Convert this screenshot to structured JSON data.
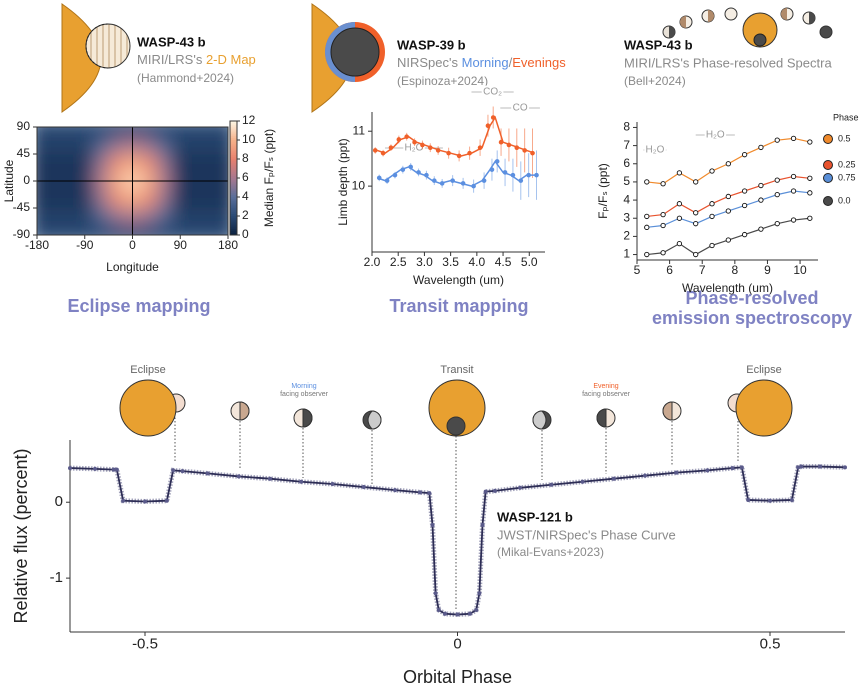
{
  "chart_data": [
    {
      "type": "heatmap",
      "title": "WASP-43 b",
      "subtitle": [
        "MIRI/LRS's ",
        "2-D Map"
      ],
      "source": "(Hammond+2024)",
      "section": "Eclipse mapping",
      "xlabel": "Longitude",
      "ylabel": "Latitude",
      "colorbar_label": "Median Fₚ/Fₛ (ppt)",
      "x": [
        -180,
        -150,
        -120,
        -90,
        -60,
        -30,
        0,
        30,
        60,
        90,
        120,
        150,
        180
      ],
      "y": [
        90,
        60,
        30,
        0,
        -30,
        -60,
        -90
      ],
      "z": [
        [
          2,
          2,
          2,
          2,
          2,
          2,
          2,
          2,
          2,
          2,
          2,
          2,
          2
        ],
        [
          1.5,
          1.5,
          1.5,
          1.5,
          3.5,
          5.3,
          6,
          5.3,
          3.5,
          1.5,
          1.5,
          1.5,
          1.5
        ],
        [
          1,
          1,
          1,
          1,
          5.3,
          8.5,
          9.7,
          8.5,
          5.3,
          1,
          1,
          1,
          1
        ],
        [
          1,
          1,
          1,
          1,
          6,
          9.7,
          11,
          9.7,
          6,
          1,
          1,
          1,
          1
        ],
        [
          1,
          1,
          1,
          1,
          5.3,
          8.5,
          9.7,
          8.5,
          5.3,
          1,
          1,
          1,
          1
        ],
        [
          1.5,
          1.5,
          1.5,
          1.5,
          3.5,
          5.3,
          6,
          5.3,
          3.5,
          1.5,
          1.5,
          1.5,
          1.5
        ],
        [
          2,
          2,
          2,
          2,
          2,
          2,
          2,
          2,
          2,
          2,
          2,
          2,
          2
        ]
      ],
      "xlim": [
        -180,
        180
      ],
      "xticks": [
        -180,
        -90,
        0,
        90,
        180
      ],
      "ylim": [
        -90,
        90
      ],
      "yticks": [
        -90,
        -45,
        0,
        45,
        90
      ],
      "clim": [
        0,
        12
      ],
      "cticks": [
        0,
        2,
        4,
        6,
        8,
        10,
        12
      ]
    },
    {
      "type": "errorbar",
      "title": "WASP-39 b",
      "subtitle": [
        "NIRSpec's ",
        "Morning",
        "/",
        "Evenings"
      ],
      "subtitle_colors": [
        "#8a8a8a",
        "#5b8fe0",
        "#8a8a8a",
        "#f0602a"
      ],
      "source": "(Espinoza+2024)",
      "section": "Transit mapping",
      "xlabel": "Wavelength (um)",
      "ylabel": "Limb depth (ppt)",
      "annotations": [
        "H₂O",
        "CO₂",
        "CO"
      ],
      "x": [
        2.1,
        2.25,
        2.4,
        2.55,
        2.7,
        2.85,
        3.0,
        3.15,
        3.3,
        3.5,
        3.7,
        3.9,
        4.1,
        4.25,
        4.35,
        4.5,
        4.65,
        4.8,
        4.95,
        5.1
      ],
      "series": [
        {
          "color": "#f0602a",
          "values": [
            10.65,
            10.6,
            10.7,
            10.85,
            10.9,
            10.8,
            10.75,
            10.7,
            10.65,
            10.6,
            10.55,
            10.6,
            10.7,
            11.1,
            11.25,
            10.8,
            10.75,
            10.7,
            10.65,
            10.6
          ]
        },
        {
          "color": "#5b8fe0",
          "values": [
            10.15,
            10.1,
            10.2,
            10.3,
            10.35,
            10.25,
            10.2,
            10.1,
            10.05,
            10.1,
            10.05,
            10.0,
            10.1,
            10.3,
            10.45,
            10.25,
            10.2,
            10.1,
            10.2,
            10.2
          ]
        }
      ],
      "errors": [
        0.06,
        0.06,
        0.06,
        0.07,
        0.07,
        0.07,
        0.08,
        0.08,
        0.08,
        0.1,
        0.1,
        0.12,
        0.15,
        0.2,
        0.2,
        0.25,
        0.3,
        0.35,
        0.4,
        0.45
      ],
      "xlim": [
        2.0,
        5.3
      ],
      "xticks": [
        {
          "value": 2,
          "label": "2.0"
        },
        2.5,
        {
          "value": 3,
          "label": "3.0"
        },
        3.5,
        {
          "value": 4,
          "label": "4.0"
        },
        4.5,
        {
          "value": 5,
          "label": "5.0"
        }
      ],
      "ylim": [
        8.8,
        11.35
      ],
      "yticks": [
        10,
        11
      ]
    },
    {
      "type": "line",
      "title": "WASP-43 b",
      "subtitle": [
        "MIRI/LRS's Phase-resolved Spectra"
      ],
      "source": "(Bell+2024)",
      "section": [
        "Phase-resolved",
        "emission spectroscopy"
      ],
      "xlabel": "Wavelength (um)",
      "ylabel": "Fₚ/Fₛ (ppt)",
      "legend_title": "Phase",
      "annotations": [
        "H₂O",
        "H₂O"
      ],
      "x": [
        5.3,
        5.8,
        6.3,
        6.8,
        7.3,
        7.8,
        8.3,
        8.8,
        9.3,
        9.8,
        10.3
      ],
      "series": [
        {
          "name": "0.5",
          "color": "#f08a2c",
          "values": [
            5.0,
            4.9,
            5.5,
            5.0,
            5.6,
            6.0,
            6.5,
            6.9,
            7.3,
            7.4,
            7.2
          ]
        },
        {
          "name": "0.25",
          "color": "#e8532e",
          "values": [
            3.1,
            3.2,
            3.8,
            3.3,
            3.8,
            4.2,
            4.5,
            4.8,
            5.1,
            5.3,
            5.2
          ]
        },
        {
          "name": "0.75",
          "color": "#5a8fd8",
          "values": [
            2.5,
            2.6,
            3.0,
            2.7,
            3.1,
            3.4,
            3.7,
            4.0,
            4.3,
            4.5,
            4.4
          ]
        },
        {
          "name": "0.0",
          "color": "#4a4a4a",
          "values": [
            1.0,
            1.1,
            1.6,
            1.0,
            1.5,
            1.8,
            2.1,
            2.4,
            2.7,
            2.9,
            3.0
          ]
        }
      ],
      "xlim": [
        5,
        10.55
      ],
      "xticks": [
        5,
        6,
        7,
        8,
        9,
        10
      ],
      "ylim": [
        0.7,
        8.3
      ],
      "yticks": [
        1,
        2,
        3,
        4,
        5,
        6,
        7,
        8
      ]
    },
    {
      "type": "line",
      "title": "WASP-121 b",
      "subtitle": "JWST/NIRSpec's Phase Curve",
      "source": "(Mikal-Evans+2023)",
      "xlabel": "Orbital Phase",
      "ylabel": "Relative flux (percent)",
      "annotations": [
        "Eclipse",
        "Transit",
        "Eclipse",
        "Morning",
        "facing observer",
        "Evening",
        "facing observer"
      ],
      "x": [
        -0.62,
        -0.58,
        -0.55,
        -0.545,
        -0.535,
        -0.5,
        -0.465,
        -0.455,
        -0.44,
        -0.4,
        -0.35,
        -0.3,
        -0.25,
        -0.2,
        -0.15,
        -0.1,
        -0.06,
        -0.045,
        -0.04,
        -0.035,
        -0.03,
        -0.02,
        0,
        0.02,
        0.03,
        0.035,
        0.04,
        0.045,
        0.06,
        0.1,
        0.15,
        0.2,
        0.25,
        0.3,
        0.35,
        0.4,
        0.44,
        0.455,
        0.465,
        0.5,
        0.535,
        0.545,
        0.55,
        0.58,
        0.62
      ],
      "series": [
        {
          "color": "#2d2d55",
          "values": [
            0.45,
            0.44,
            0.43,
            0.43,
            0.02,
            0.01,
            0.02,
            0.42,
            0.41,
            0.38,
            0.34,
            0.31,
            0.27,
            0.24,
            0.2,
            0.16,
            0.13,
            0.12,
            -0.3,
            -1.2,
            -1.42,
            -1.47,
            -1.48,
            -1.47,
            -1.42,
            -1.2,
            -0.3,
            0.14,
            0.15,
            0.19,
            0.23,
            0.27,
            0.31,
            0.35,
            0.39,
            0.42,
            0.45,
            0.46,
            0.03,
            0.02,
            0.03,
            0.46,
            0.47,
            0.47,
            0.46
          ]
        }
      ],
      "xlim": [
        -0.62,
        0.62
      ],
      "xticks": [
        -0.5,
        0,
        0.5
      ],
      "ylim": [
        -1.71,
        0.82
      ],
      "yticks": [
        -1,
        0
      ]
    }
  ]
}
